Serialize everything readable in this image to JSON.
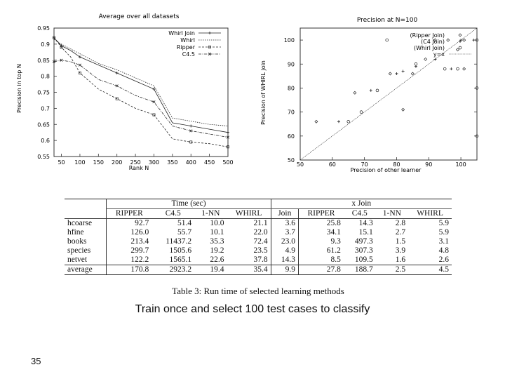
{
  "chart_data": [
    {
      "type": "line",
      "title": "Average over all datasets",
      "xlabel": "Rank N",
      "ylabel": "Precision in top N",
      "xlim": [
        30,
        500
      ],
      "ylim": [
        0.55,
        0.95
      ],
      "xticks": [
        50,
        100,
        150,
        200,
        250,
        300,
        350,
        400,
        450,
        500
      ],
      "yticks": [
        "0.55",
        "0.6",
        "0.65",
        "0.7",
        "0.75",
        "0.8",
        "0.85",
        "0.9",
        "0.95"
      ],
      "legend_position": "top-right",
      "x": [
        30,
        50,
        75,
        100,
        150,
        200,
        250,
        300,
        350,
        400,
        450,
        500
      ],
      "series": [
        {
          "name": "Whirl Join",
          "values": [
            0.92,
            0.895,
            0.88,
            0.86,
            0.835,
            0.81,
            0.785,
            0.76,
            0.655,
            0.645,
            0.635,
            0.625
          ]
        },
        {
          "name": "Whirl",
          "values": [
            0.915,
            0.9,
            0.885,
            0.87,
            0.84,
            0.82,
            0.795,
            0.77,
            0.67,
            0.66,
            0.65,
            0.645
          ]
        },
        {
          "name": "Ripper",
          "values": [
            0.92,
            0.89,
            0.86,
            0.81,
            0.76,
            0.73,
            0.7,
            0.68,
            0.605,
            0.595,
            0.59,
            0.58
          ]
        },
        {
          "name": "C4.5",
          "values": [
            0.845,
            0.85,
            0.845,
            0.835,
            0.79,
            0.77,
            0.74,
            0.72,
            0.645,
            0.63,
            0.62,
            0.61
          ]
        }
      ]
    },
    {
      "type": "scatter",
      "title": "Precision at N=100",
      "xlabel": "Precision of other learner",
      "ylabel": "Precision of WHIRL join",
      "xlim": [
        50,
        105
      ],
      "ylim": [
        50,
        105
      ],
      "xticks": [
        50,
        60,
        70,
        80,
        90,
        100
      ],
      "yticks": [
        50,
        60,
        70,
        80,
        90,
        100
      ],
      "legend_position": "top-right",
      "series": [
        {
          "name": "(Ripper Join)",
          "points": [
            [
              55,
              66
            ],
            [
              67,
              78
            ],
            [
              78,
              86
            ],
            [
              82,
              71
            ],
            [
              85,
              86
            ],
            [
              89,
              92
            ],
            [
              92,
              100
            ],
            [
              96,
              100
            ],
            [
              99,
              96
            ],
            [
              101,
              100
            ],
            [
              101,
              88
            ]
          ]
        },
        {
          "name": "(C4 Join)",
          "points": [
            [
              62,
              66
            ],
            [
              72,
              79
            ],
            [
              80,
              86
            ],
            [
              82,
              87
            ],
            [
              86,
              89
            ],
            [
              92,
              92
            ],
            [
              97,
              88
            ],
            [
              100,
              100
            ],
            [
              104,
              100
            ]
          ]
        },
        {
          "name": "(Whirl Join)",
          "points": [
            [
              65,
              66
            ],
            [
              69,
              70
            ],
            [
              74,
              79
            ],
            [
              77,
              100
            ],
            [
              86,
              90
            ],
            [
              95,
              88
            ],
            [
              99,
              88
            ],
            [
              105,
              80
            ],
            [
              105,
              60
            ],
            [
              105,
              100
            ]
          ]
        },
        {
          "name": "y=x",
          "points": [
            [
              50,
              50
            ],
            [
              105,
              105
            ]
          ]
        }
      ]
    },
    {
      "type": "table",
      "caption": "Table 3: Run time of selected learning methods",
      "group_headers": [
        "Time (sec)",
        "x Join"
      ],
      "columns": [
        "RIPPER",
        "C4.5",
        "1-NN",
        "WHIRL",
        "Join",
        "RIPPER",
        "C4.5",
        "1-NN",
        "WHIRL"
      ],
      "rows": [
        {
          "label": "hcoarse",
          "values": [
            "92.7",
            "51.4",
            "10.0",
            "21.1",
            "3.6",
            "25.8",
            "14.3",
            "2.8",
            "5.9"
          ]
        },
        {
          "label": "hfine",
          "values": [
            "126.0",
            "55.7",
            "10.1",
            "22.0",
            "3.7",
            "34.1",
            "15.1",
            "2.7",
            "5.9"
          ]
        },
        {
          "label": "books",
          "values": [
            "213.4",
            "11437.2",
            "35.3",
            "72.4",
            "23.0",
            "9.3",
            "497.3",
            "1.5",
            "3.1"
          ]
        },
        {
          "label": "species",
          "values": [
            "299.7",
            "1505.6",
            "19.2",
            "23.5",
            "4.9",
            "61.2",
            "307.3",
            "3.9",
            "4.8"
          ]
        },
        {
          "label": "netvet",
          "values": [
            "122.2",
            "1565.1",
            "22.6",
            "37.8",
            "14.3",
            "8.5",
            "109.5",
            "1.6",
            "2.6"
          ]
        },
        {
          "label": "average",
          "values": [
            "170.8",
            "2923.2",
            "19.4",
            "35.4",
            "9.9",
            "27.8",
            "188.7",
            "2.5",
            "4.5"
          ]
        }
      ]
    }
  ],
  "caption_text": "Train once and select 100 test cases to classify",
  "page_number": "35",
  "colors": {
    "ink": "#222222",
    "grid": "#888888",
    "frame": "#333333"
  }
}
